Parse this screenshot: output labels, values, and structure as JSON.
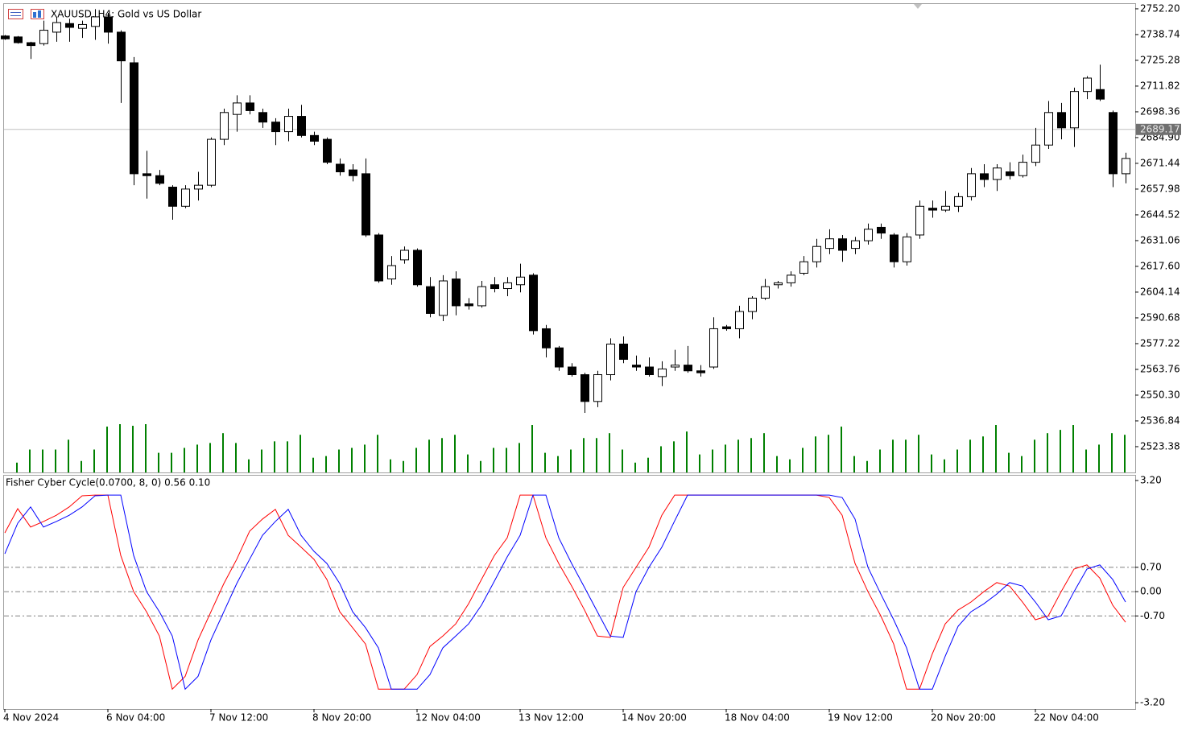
{
  "chart_data": [
    {
      "type": "candlestick",
      "title": "XAUUSD, H4:  Gold vs US Dollar",
      "categories": [
        "4 Nov 2024",
        null,
        null,
        null,
        null,
        null,
        null,
        null,
        "6 Nov 04:00",
        null,
        null,
        null,
        null,
        null,
        null,
        null,
        "7 Nov 12:00",
        null,
        null,
        null,
        null,
        null,
        null,
        null,
        "8 Nov 20:00",
        null,
        null,
        null,
        null,
        null,
        null,
        null,
        "12 Nov 04:00",
        null,
        null,
        null,
        null,
        null,
        null,
        null,
        "13 Nov 12:00",
        null,
        null,
        null,
        null,
        null,
        null,
        null,
        "14 Nov 20:00",
        null,
        null,
        null,
        null,
        null,
        null,
        null,
        "18 Nov 04:00",
        null,
        null,
        null,
        null,
        null,
        null,
        null,
        "19 Nov 12:00",
        null,
        null,
        null,
        null,
        null,
        null,
        null,
        "20 Nov 20:00",
        null,
        null,
        null,
        null,
        null,
        null,
        null,
        "22 Nov 04:00",
        null,
        null,
        null,
        null,
        null,
        null,
        null
      ],
      "open": [
        2738,
        2737.5,
        2734.5,
        2734,
        2740,
        2744.5,
        2742,
        2743,
        2748,
        2740,
        2724,
        2666,
        2665,
        2659,
        2649,
        2658,
        2660,
        2684,
        2697,
        2703,
        2698,
        2693,
        2688,
        2696,
        2686,
        2684,
        2671,
        2668,
        2666,
        2634,
        2611,
        2621,
        2626,
        2607,
        2592,
        2611,
        2598,
        2597,
        2608,
        2606,
        2608,
        2613,
        2585,
        2575,
        2565,
        2561,
        2547,
        2561,
        2577,
        2566,
        2565,
        2560,
        2565,
        2566,
        2563,
        2565,
        2586,
        2585,
        2594,
        2601,
        2608,
        2609,
        2614,
        2620,
        2627,
        2632,
        2627,
        2631,
        2638,
        2634,
        2620,
        2634,
        2648,
        2647,
        2649,
        2654,
        2666,
        2663,
        2667,
        2665,
        2672,
        2681,
        2698,
        2690,
        2709,
        2710,
        2698,
        2666
      ],
      "high": [
        2738.5,
        2738,
        2735,
        2746,
        2748,
        2747,
        2746,
        2752,
        2750,
        2741,
        2727,
        2678,
        2668,
        2660,
        2660,
        2667,
        2685,
        2700,
        2707,
        2707,
        2700,
        2695,
        2700,
        2702,
        2688,
        2685,
        2674,
        2671,
        2674,
        2635,
        2623,
        2628,
        2627,
        2612,
        2613,
        2615,
        2601,
        2610,
        2612,
        2612,
        2619,
        2614,
        2587,
        2576,
        2567,
        2562,
        2563,
        2580,
        2581,
        2571,
        2570,
        2568,
        2574,
        2576,
        2566,
        2591,
        2587,
        2597,
        2602,
        2611,
        2610,
        2615,
        2623,
        2632,
        2637,
        2634,
        2633,
        2640,
        2640,
        2635,
        2635,
        2652,
        2652,
        2657,
        2656,
        2669,
        2671,
        2671,
        2672,
        2676,
        2690,
        2704,
        2703,
        2711,
        2717,
        2723,
        2699,
        2677
      ],
      "low": [
        2736,
        2734,
        2726,
        2733,
        2735,
        2735,
        2737,
        2736,
        2734,
        2703,
        2660,
        2653,
        2660,
        2642,
        2648,
        2652,
        2659,
        2681,
        2688,
        2697,
        2690,
        2681,
        2683,
        2685,
        2681,
        2671,
        2665,
        2662,
        2633,
        2609,
        2608,
        2619,
        2607,
        2591,
        2589,
        2592,
        2595,
        2596,
        2604,
        2602,
        2604,
        2582,
        2570,
        2563,
        2560,
        2541,
        2544,
        2558,
        2567,
        2563,
        2560,
        2555,
        2563,
        2562,
        2560,
        2564,
        2584,
        2580,
        2590,
        2600,
        2606,
        2607,
        2613,
        2617,
        2624,
        2620,
        2624,
        2629,
        2632,
        2617,
        2618,
        2632,
        2643,
        2646,
        2646,
        2652,
        2659,
        2657,
        2663,
        2664,
        2670,
        2679,
        2684,
        2680,
        2705,
        2704,
        2659,
        2661
      ],
      "close": [
        2736.5,
        2734.5,
        2733,
        2741,
        2745,
        2742.5,
        2744,
        2748,
        2740,
        2725,
        2666,
        2665,
        2661,
        2649,
        2658,
        2660,
        2684,
        2698,
        2703,
        2699,
        2693,
        2688,
        2696,
        2686,
        2683,
        2672,
        2667,
        2665,
        2634,
        2610,
        2618,
        2626,
        2608,
        2593,
        2610,
        2597,
        2597,
        2607,
        2606,
        2609,
        2612,
        2584,
        2575,
        2565,
        2561,
        2547,
        2561,
        2577,
        2569,
        2565,
        2561,
        2564,
        2566,
        2563,
        2562,
        2585,
        2585,
        2594,
        2601,
        2607,
        2609,
        2613,
        2620,
        2628,
        2632,
        2626,
        2631,
        2637,
        2635,
        2620,
        2633,
        2649,
        2647,
        2649,
        2654,
        2666,
        2663,
        2669,
        2665,
        2672,
        2681,
        2698,
        2690,
        2709,
        2716,
        2705,
        2666,
        2674
      ],
      "volume": [
        null,
        12,
        28,
        28,
        28,
        40,
        14,
        28,
        56,
        59,
        57,
        59,
        24,
        24,
        30,
        34,
        36,
        48,
        36,
        16,
        28,
        38,
        38,
        46,
        18,
        20,
        28,
        30,
        34,
        46,
        16,
        14,
        30,
        40,
        42,
        46,
        22,
        14,
        30,
        30,
        36,
        58,
        24,
        20,
        28,
        42,
        42,
        48,
        28,
        12,
        18,
        32,
        38,
        50,
        22,
        28,
        34,
        40,
        42,
        48,
        20,
        16,
        30,
        44,
        46,
        56,
        20,
        14,
        28,
        40,
        40,
        46,
        22,
        16,
        28,
        40,
        44,
        58,
        24,
        20,
        40,
        48,
        52,
        58,
        28,
        34,
        48,
        46
      ],
      "volume_color": "#008000",
      "up_color": "#ffffff",
      "down_color": "#000000",
      "last_price": 2689.17,
      "ylim": [
        2509.9,
        2754.7
      ],
      "yticks": [
        {
          "value": 2752.2,
          "label": "2752.20"
        },
        2738.74,
        2725.28,
        2711.82,
        2698.36,
        {
          "value": 2684.9,
          "label": "2684.90"
        },
        2671.44,
        2657.98,
        2644.52,
        2631.06,
        {
          "value": 2617.6,
          "label": "2617.60"
        },
        2604.14,
        2590.68,
        2577.22,
        2563.76,
        {
          "value": 2550.3,
          "label": "2550.30"
        },
        2536.84,
        2523.38
      ]
    },
    {
      "type": "line",
      "title": "Fisher Cyber Cycle(0.0700, 8, 0) 0.56 0.10",
      "series": [
        {
          "color": "#ff0000",
          "values": [
            1.69,
            2.39,
            1.86,
            2.02,
            2.2,
            2.44,
            2.76,
            2.78,
            2.78,
            1.04,
            0,
            -0.58,
            -1.28,
            -2.81,
            -2.44,
            -1.39,
            -0.58,
            0.23,
            0.93,
            1.74,
            2.09,
            2.37,
            1.62,
            1.28,
            0.93,
            0.35,
            -0.58,
            -1.04,
            -1.51,
            -2.81,
            -2.81,
            -2.81,
            -2.39,
            -1.58,
            -1.28,
            -0.93,
            -0.35,
            0.35,
            1.04,
            1.55,
            2.78,
            2.78,
            1.55,
            0.81,
            0.16,
            -0.53,
            -1.28,
            -1.32,
            0.12,
            0.7,
            1.28,
            2.2,
            2.78,
            2.78,
            2.78,
            2.78,
            2.78,
            2.78,
            2.78,
            2.78,
            2.78,
            2.78,
            2.78,
            2.78,
            2.71,
            2.2,
            0.81,
            0,
            -0.7,
            -1.51,
            -2.81,
            -2.81,
            -1.79,
            -0.93,
            -0.53,
            -0.3,
            0,
            0.26,
            0.16,
            -0.3,
            -0.81,
            -0.7,
            0,
            0.65,
            0.77,
            0.39,
            -0.39,
            -0.88
          ]
        },
        {
          "color": "#0000ff",
          "values": [
            1.09,
            1.97,
            2.44,
            1.86,
            2.02,
            2.2,
            2.44,
            2.76,
            2.78,
            2.78,
            1.04,
            0,
            -0.58,
            -1.28,
            -2.81,
            -2.44,
            -1.39,
            -0.58,
            0.23,
            0.93,
            1.62,
            2.02,
            2.37,
            1.62,
            1.16,
            0.81,
            0.23,
            -0.58,
            -1.04,
            -1.62,
            -2.81,
            -2.81,
            -2.81,
            -2.39,
            -1.62,
            -1.28,
            -0.93,
            -0.39,
            0.3,
            1,
            1.62,
            2.78,
            2.78,
            1.55,
            0.81,
            0.12,
            -0.58,
            -1.28,
            -1.32,
            0,
            0.7,
            1.28,
            2.04,
            2.78,
            2.78,
            2.78,
            2.78,
            2.78,
            2.78,
            2.78,
            2.78,
            2.78,
            2.78,
            2.78,
            2.78,
            2.71,
            2.09,
            0.7,
            -0.07,
            -0.81,
            -1.62,
            -2.81,
            -2.81,
            -1.86,
            -1,
            -0.58,
            -0.35,
            -0.07,
            0.26,
            0.16,
            -0.3,
            -0.81,
            -0.7,
            0,
            0.65,
            0.77,
            0.35,
            -0.3
          ]
        }
      ],
      "levels": [
        0.7,
        0,
        -0.7
      ],
      "ylim": [
        -3.36,
        3.34
      ],
      "yticks": [
        {
          "value": 3.2,
          "label": "3.20"
        },
        {
          "value": 0.7,
          "label": "0.70"
        },
        {
          "value": 0,
          "label": "0.00"
        },
        {
          "value": -0.7,
          "label": "-0.70"
        },
        {
          "value": -3.2,
          "label": "-3.20"
        }
      ]
    }
  ]
}
